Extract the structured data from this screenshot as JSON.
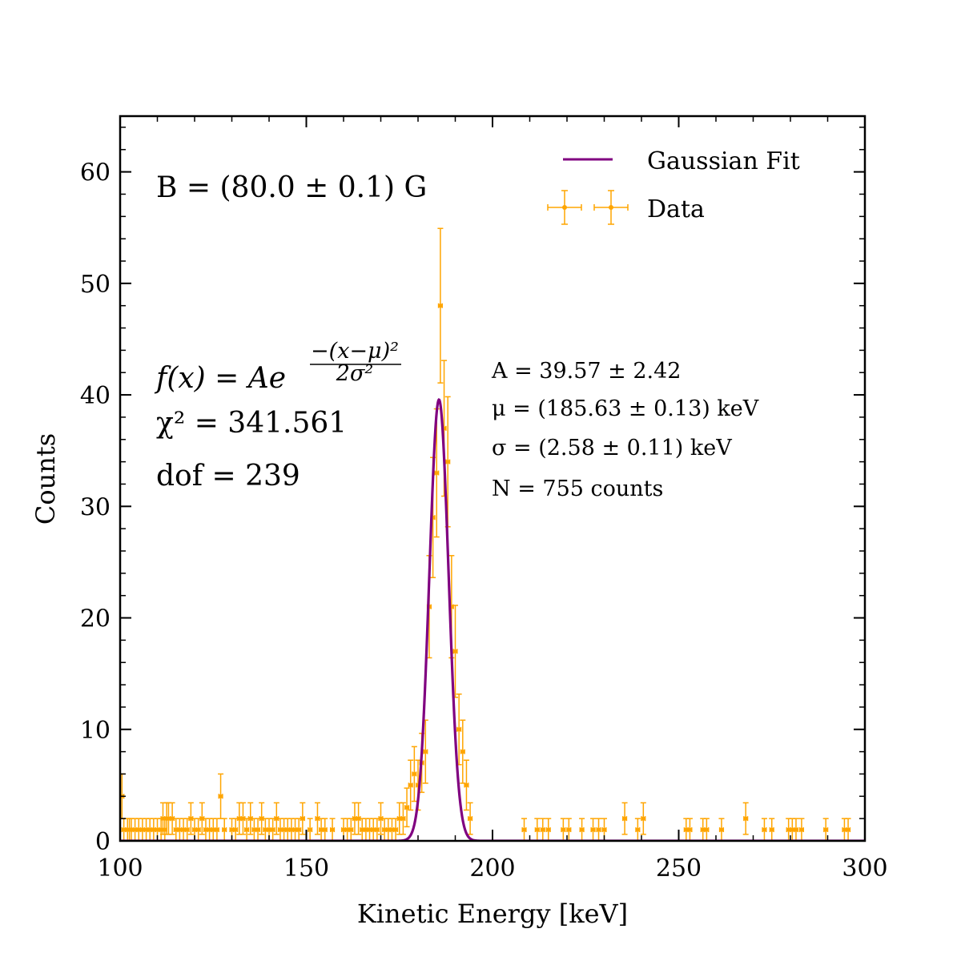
{
  "chart_data": {
    "type": "scatter",
    "xlabel": "Kinetic Energy [keV]",
    "ylabel": "Counts",
    "xlim": [
      100,
      300
    ],
    "ylim": [
      0,
      65
    ],
    "x_major_ticks": [
      100,
      150,
      200,
      250,
      300
    ],
    "y_major_ticks": [
      0,
      10,
      20,
      30,
      40,
      50,
      60
    ],
    "x_tick_labels": [
      "100",
      "150",
      "200",
      "250",
      "300"
    ],
    "y_tick_labels": [
      "0",
      "10",
      "20",
      "30",
      "40",
      "50",
      "60"
    ],
    "x_error": 0.5,
    "grid": false,
    "legend_position": "top-right",
    "colors": {
      "data": "#FFA500",
      "fit": "#800080"
    },
    "legend": [
      {
        "label": "Gaussian Fit",
        "kind": "line"
      },
      {
        "label": "Data",
        "kind": "errorbar"
      }
    ],
    "annotations": {
      "field": "B = (80.0 ± 0.1) G",
      "model_lhs": "f(x) = Ae",
      "model_exp_num": "−(x−μ)²",
      "model_exp_den": "2σ²",
      "chi2": "χ² = 341.561",
      "dof": "dof = 239",
      "param_A": "A = 39.57 ± 2.42",
      "param_mu": "μ = (185.63 ± 0.13) keV",
      "param_sigma": "σ = (2.58 ± 0.11) keV",
      "param_N": "N = 755 counts"
    },
    "fit": {
      "model": "gaussian",
      "A": 39.57,
      "mu": 185.63,
      "sigma": 2.58
    },
    "series": [
      {
        "name": "Data",
        "points": [
          [
            100.5,
            4
          ],
          [
            101,
            1
          ],
          [
            102,
            1
          ],
          [
            102.5,
            1
          ],
          [
            103,
            1
          ],
          [
            104,
            1
          ],
          [
            105,
            1
          ],
          [
            106,
            1
          ],
          [
            107,
            1
          ],
          [
            108,
            1
          ],
          [
            109,
            1
          ],
          [
            110,
            1
          ],
          [
            111,
            1
          ],
          [
            111.5,
            2
          ],
          [
            112,
            1
          ],
          [
            112.5,
            2
          ],
          [
            113,
            2
          ],
          [
            114,
            2
          ],
          [
            115,
            1
          ],
          [
            116,
            1
          ],
          [
            117,
            1
          ],
          [
            118,
            1
          ],
          [
            119,
            2
          ],
          [
            120,
            1
          ],
          [
            121,
            1
          ],
          [
            122,
            2
          ],
          [
            123,
            1
          ],
          [
            124,
            1
          ],
          [
            125,
            1
          ],
          [
            126,
            1
          ],
          [
            127,
            4
          ],
          [
            128,
            1
          ],
          [
            130,
            1
          ],
          [
            131,
            1
          ],
          [
            132,
            2
          ],
          [
            133,
            2
          ],
          [
            134,
            1
          ],
          [
            135,
            2
          ],
          [
            136,
            1
          ],
          [
            137,
            1
          ],
          [
            138,
            2
          ],
          [
            139,
            1
          ],
          [
            140,
            1
          ],
          [
            141,
            1
          ],
          [
            142,
            2
          ],
          [
            143,
            1
          ],
          [
            144,
            1
          ],
          [
            145,
            1
          ],
          [
            146,
            1
          ],
          [
            147,
            1
          ],
          [
            148,
            1
          ],
          [
            149,
            2
          ],
          [
            151,
            1
          ],
          [
            153,
            2
          ],
          [
            154,
            1
          ],
          [
            155,
            1
          ],
          [
            157,
            1
          ],
          [
            160,
            1
          ],
          [
            161,
            1
          ],
          [
            162,
            1
          ],
          [
            163,
            2
          ],
          [
            164,
            2
          ],
          [
            165,
            1
          ],
          [
            166,
            1
          ],
          [
            167,
            1
          ],
          [
            168,
            1
          ],
          [
            169,
            1
          ],
          [
            170,
            2
          ],
          [
            171,
            1
          ],
          [
            172,
            1
          ],
          [
            173,
            1
          ],
          [
            174,
            1
          ],
          [
            175,
            2
          ],
          [
            176,
            2
          ],
          [
            177,
            3
          ],
          [
            178,
            5
          ],
          [
            179,
            6
          ],
          [
            180,
            5
          ],
          [
            181,
            7
          ],
          [
            182,
            8
          ],
          [
            183,
            21
          ],
          [
            184,
            29
          ],
          [
            185,
            33
          ],
          [
            186,
            48
          ],
          [
            187,
            37
          ],
          [
            188,
            34
          ],
          [
            189,
            21
          ],
          [
            190,
            17
          ],
          [
            191,
            10
          ],
          [
            192,
            8
          ],
          [
            193,
            5
          ],
          [
            194,
            2
          ],
          [
            208.5,
            1
          ],
          [
            212,
            1
          ],
          [
            213.5,
            1
          ],
          [
            215,
            1
          ],
          [
            219,
            1
          ],
          [
            220.5,
            1
          ],
          [
            224,
            1
          ],
          [
            227,
            1
          ],
          [
            228.5,
            1
          ],
          [
            230,
            1
          ],
          [
            235.5,
            2
          ],
          [
            239,
            1
          ],
          [
            240.5,
            2
          ],
          [
            252,
            1
          ],
          [
            253,
            1
          ],
          [
            256.5,
            1
          ],
          [
            257.5,
            1
          ],
          [
            261.5,
            1
          ],
          [
            268,
            2
          ],
          [
            273,
            1
          ],
          [
            275,
            1
          ],
          [
            279.5,
            1
          ],
          [
            280.5,
            1
          ],
          [
            281.5,
            1
          ],
          [
            283,
            1
          ],
          [
            289.5,
            1
          ],
          [
            294.5,
            1
          ],
          [
            295.5,
            1
          ]
        ]
      }
    ]
  }
}
